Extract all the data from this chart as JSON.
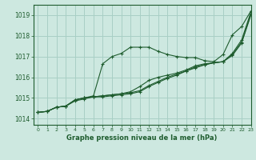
{
  "background_color": "#cde8e0",
  "grid_color": "#a8cfc5",
  "line_color": "#1e5c2e",
  "xlabel": "Graphe pression niveau de la mer (hPa)",
  "xlim": [
    -0.5,
    23
  ],
  "ylim": [
    1013.7,
    1019.5
  ],
  "yticks": [
    1014,
    1015,
    1016,
    1017,
    1018,
    1019
  ],
  "xticks": [
    0,
    1,
    2,
    3,
    4,
    5,
    6,
    7,
    8,
    9,
    10,
    11,
    12,
    13,
    14,
    15,
    16,
    17,
    18,
    19,
    20,
    21,
    22,
    23
  ],
  "series": [
    [
      1014.3,
      1014.35,
      1014.55,
      1014.6,
      1014.9,
      1015.0,
      1015.1,
      1016.65,
      1017.0,
      1017.15,
      1017.45,
      1017.45,
      1017.45,
      1017.25,
      1017.1,
      1017.0,
      1016.95,
      1016.95,
      1016.8,
      1016.75,
      1017.1,
      1018.05,
      1018.45,
      1019.2
    ],
    [
      1014.3,
      1014.35,
      1014.55,
      1014.6,
      1014.9,
      1015.0,
      1015.05,
      1015.1,
      1015.15,
      1015.2,
      1015.3,
      1015.55,
      1015.85,
      1016.0,
      1016.1,
      1016.2,
      1016.35,
      1016.55,
      1016.65,
      1016.7,
      1016.75,
      1017.15,
      1017.8,
      1019.15
    ],
    [
      1014.3,
      1014.35,
      1014.55,
      1014.6,
      1014.9,
      1015.0,
      1015.05,
      1015.1,
      1015.15,
      1015.2,
      1015.25,
      1015.35,
      1015.6,
      1015.8,
      1016.0,
      1016.15,
      1016.3,
      1016.5,
      1016.6,
      1016.7,
      1016.75,
      1017.1,
      1017.7,
      1019.05
    ],
    [
      1014.3,
      1014.35,
      1014.55,
      1014.6,
      1014.85,
      1014.95,
      1015.05,
      1015.05,
      1015.1,
      1015.15,
      1015.2,
      1015.3,
      1015.55,
      1015.75,
      1015.95,
      1016.1,
      1016.3,
      1016.45,
      1016.6,
      1016.7,
      1016.75,
      1017.05,
      1017.65,
      1019.0
    ]
  ],
  "figsize": [
    3.2,
    2.0
  ],
  "dpi": 100
}
